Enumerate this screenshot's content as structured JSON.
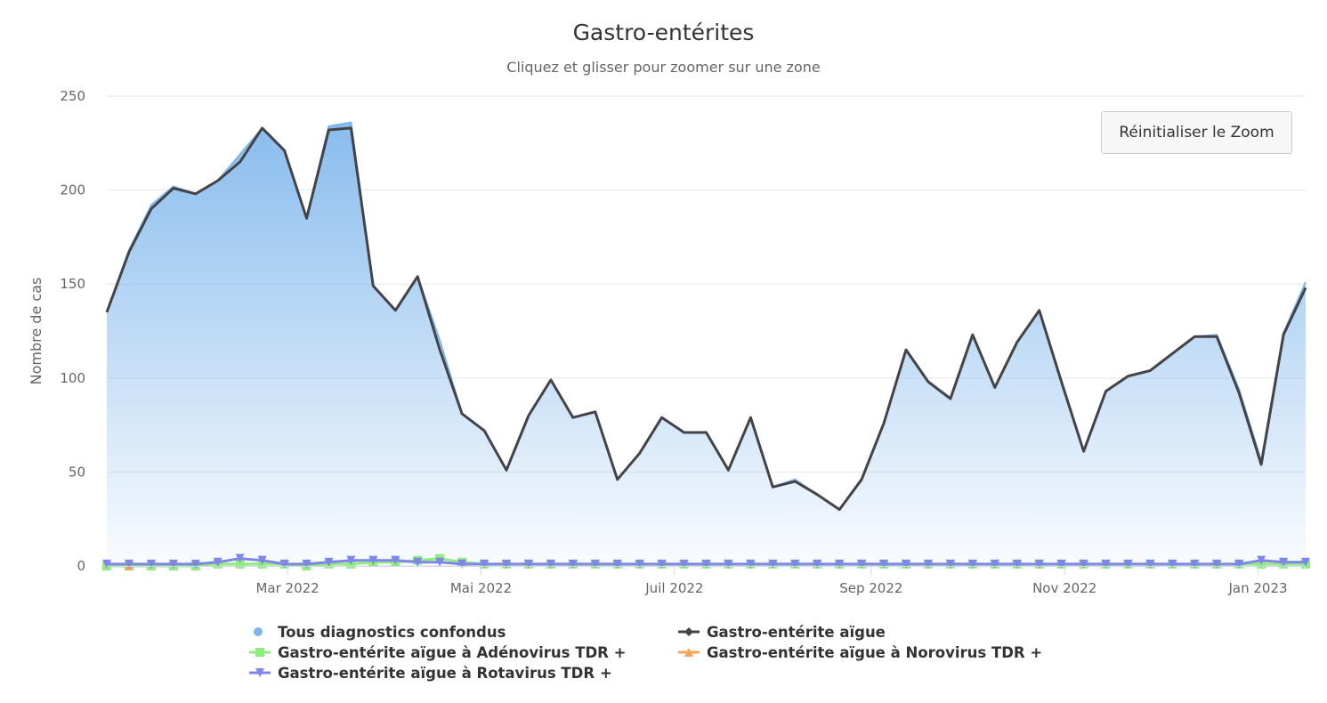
{
  "chart_data": {
    "type": "area",
    "title": "Gastro-entérites",
    "subtitle": "Cliquez et glisser pour zoomer sur une zone",
    "ylabel": "Nombre de cas",
    "xlabel": "",
    "ylim": [
      0,
      250
    ],
    "yticks": [
      0,
      50,
      100,
      150,
      200,
      250
    ],
    "xlim": [
      "2022-01-03",
      "2023-01-16"
    ],
    "xticks": [
      {
        "date": "2022-03-01",
        "label": "Mar 2022"
      },
      {
        "date": "2022-05-01",
        "label": "Mai 2022"
      },
      {
        "date": "2022-07-01",
        "label": "Juil 2022"
      },
      {
        "date": "2022-09-01",
        "label": "Sep 2022"
      },
      {
        "date": "2022-11-01",
        "label": "Nov 2022"
      },
      {
        "date": "2023-01-01",
        "label": "Jan 2023"
      }
    ],
    "grid": true,
    "legend_placement": "bottom",
    "x_start": "2022-01-03",
    "x_step_days": 7,
    "series": [
      {
        "name": "Tous diagnostics confondus",
        "type": "area",
        "color": "#7cb5ec",
        "marker": "circle",
        "values": [
          135,
          168,
          192,
          202,
          198,
          205,
          219,
          233,
          221,
          185,
          234,
          236,
          149,
          136,
          154,
          120,
          81,
          72,
          51,
          80,
          99,
          79,
          82,
          46,
          60,
          79,
          71,
          71,
          51,
          79,
          42,
          46,
          38,
          30,
          46,
          76,
          115,
          98,
          89,
          123,
          95,
          119,
          136,
          98,
          61,
          93,
          101,
          104,
          113,
          122,
          123,
          94,
          56,
          124,
          151
        ]
      },
      {
        "name": "Gastro-entérite aïgue",
        "type": "line",
        "color": "#434348",
        "marker": "diamond",
        "values": [
          135,
          167,
          190,
          201,
          198,
          205,
          215,
          233,
          221,
          185,
          232,
          233,
          149,
          136,
          154,
          115,
          81,
          72,
          51,
          80,
          99,
          79,
          82,
          46,
          60,
          79,
          71,
          71,
          51,
          79,
          42,
          45,
          38,
          30,
          46,
          76,
          115,
          98,
          89,
          123,
          95,
          119,
          136,
          98,
          61,
          93,
          101,
          104,
          113,
          122,
          122,
          92,
          54,
          123,
          148
        ]
      },
      {
        "name": "Gastro-entérite aïgue à Adénovirus TDR +",
        "type": "line",
        "color": "#90ed7d",
        "marker": "square",
        "values": [
          0,
          0,
          0,
          0,
          0,
          1,
          1,
          1,
          1,
          0,
          1,
          1,
          2,
          2,
          3,
          4,
          2,
          1,
          1,
          1,
          1,
          1,
          1,
          1,
          1,
          1,
          1,
          1,
          1,
          1,
          1,
          1,
          1,
          1,
          1,
          1,
          1,
          1,
          1,
          1,
          1,
          1,
          1,
          1,
          1,
          1,
          1,
          1,
          1,
          1,
          1,
          1,
          1,
          1,
          1
        ]
      },
      {
        "name": "Gastro-entérite aïgue à Norovirus TDR +",
        "type": "line",
        "color": "#f7a35c",
        "marker": "triangle",
        "values": [
          null,
          0,
          null,
          null,
          null,
          null,
          null,
          null,
          null,
          null,
          null,
          null,
          null,
          null,
          null,
          null,
          null,
          null,
          null,
          null,
          null,
          null,
          null,
          null,
          null,
          null,
          null,
          null,
          null,
          null,
          null,
          null,
          null,
          null,
          null,
          null,
          null,
          null,
          null,
          null,
          null,
          null,
          null,
          null,
          null,
          null,
          null,
          null,
          null,
          null,
          null,
          null,
          null,
          null,
          null
        ]
      },
      {
        "name": "Gastro-entérite aïgue à Rotavirus TDR +",
        "type": "line",
        "color": "#8085e9",
        "marker": "triangle-down",
        "values": [
          1,
          1,
          1,
          1,
          1,
          2,
          4,
          3,
          1,
          1,
          2,
          3,
          3,
          3,
          2,
          2,
          1,
          1,
          1,
          1,
          1,
          1,
          1,
          1,
          1,
          1,
          1,
          1,
          1,
          1,
          1,
          1,
          1,
          1,
          1,
          1,
          1,
          1,
          1,
          1,
          1,
          1,
          1,
          1,
          1,
          1,
          1,
          1,
          1,
          1,
          1,
          1,
          3,
          2,
          2
        ]
      }
    ]
  },
  "reset_zoom_label": "Réinitialiser le Zoom"
}
